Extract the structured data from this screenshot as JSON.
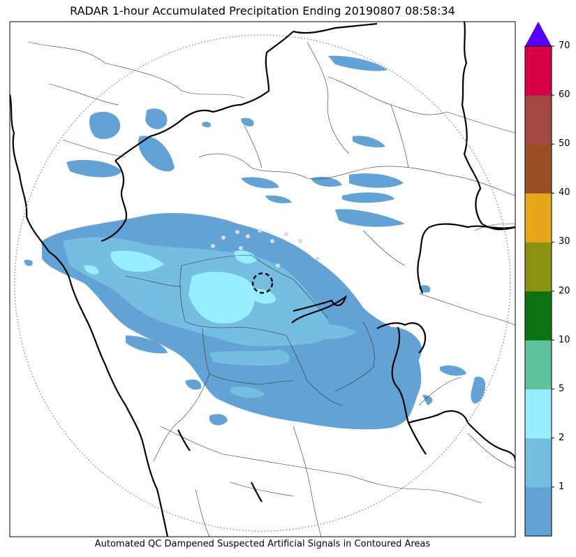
{
  "title": "RADAR 1-hour Accumulated Precipitation Ending 20190807 08:58:34",
  "footer_note": "Automated QC Dampened Suspected Artificial Signals in Contoured Areas",
  "colorbar": {
    "bins": [
      {
        "color": "#62a2d4"
      },
      {
        "color": "#76bde2"
      },
      {
        "color": "#96eefe"
      },
      {
        "color": "#5ec39c"
      },
      {
        "color": "#0d7312"
      },
      {
        "color": "#8b9212"
      },
      {
        "color": "#e6a81a"
      },
      {
        "color": "#9b4f27"
      },
      {
        "color": "#a34842"
      },
      {
        "color": "#d50046"
      }
    ],
    "extend_color": "#5500ff",
    "tick_labels": [
      "1",
      "2",
      "5",
      "10",
      "20",
      "30",
      "40",
      "50",
      "60",
      "70"
    ]
  },
  "map": {
    "radar_range_ring": "dotted",
    "radar_site_marker": "dashed-circle",
    "coastline_color": "#000000"
  }
}
